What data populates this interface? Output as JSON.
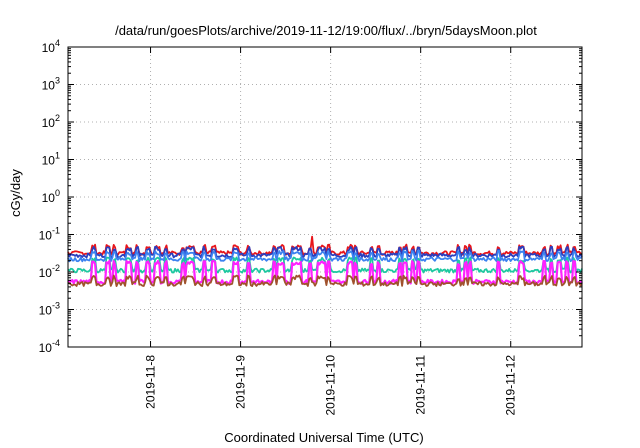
{
  "chart_data": {
    "type": "line",
    "title": "/data/run/goesPlots/archive/2019-11-12/19:00/flux/../bryn/5daysMoon.plot",
    "xlabel": "Coordinated Universal Time (UTC)",
    "ylabel": "cGy/day",
    "yscale": "log",
    "ylim": [
      0.0001,
      10000
    ],
    "y_ticks": [
      {
        "base": "10",
        "exp": "-4",
        "value": 0.0001
      },
      {
        "base": "10",
        "exp": "-3",
        "value": 0.001
      },
      {
        "base": "10",
        "exp": "-2",
        "value": 0.01
      },
      {
        "base": "10",
        "exp": "-1",
        "value": 0.1
      },
      {
        "base": "10",
        "exp": "0",
        "value": 1
      },
      {
        "base": "10",
        "exp": "1",
        "value": 10
      },
      {
        "base": "10",
        "exp": "2",
        "value": 100
      },
      {
        "base": "10",
        "exp": "3",
        "value": 1000
      },
      {
        "base": "10",
        "exp": "4",
        "value": 10000
      }
    ],
    "xlim": [
      "2019-11-07 02:00",
      "2019-11-12 19:00"
    ],
    "x_ticks": [
      "2019-11-8",
      "2019-11-9",
      "2019-11-10",
      "2019-11-11",
      "2019-11-12"
    ],
    "x_tick_dates": [
      "2019-11-08",
      "2019-11-09",
      "2019-11-10",
      "2019-11-11",
      "2019-11-12"
    ],
    "grid": true,
    "legend": "none",
    "series": [
      {
        "color": "#e8151b",
        "baseline": 0.032,
        "style": "red"
      },
      {
        "color": "#2a3fbf",
        "baseline": 0.028,
        "style": "navy"
      },
      {
        "color": "#1ec8a0",
        "baseline": 0.011,
        "style": "teal"
      },
      {
        "color": "#3b82f0",
        "baseline": 0.022,
        "style": "blue"
      },
      {
        "color": "#ff22ff",
        "baseline": 0.0055,
        "style": "magenta"
      },
      {
        "color": "#a0522d",
        "baseline": 0.0048,
        "style": "brown"
      }
    ]
  }
}
